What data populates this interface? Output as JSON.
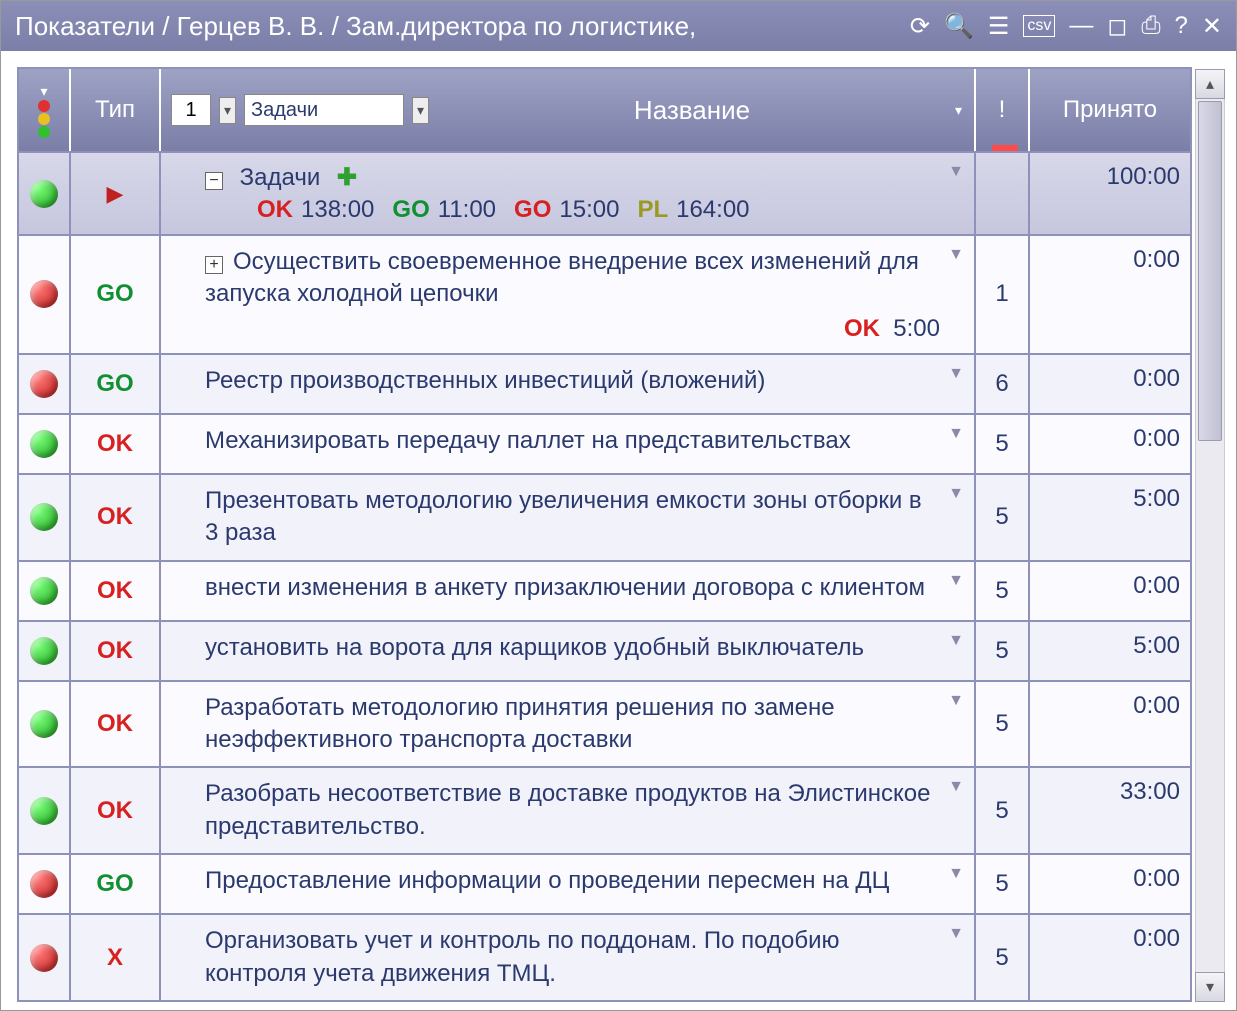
{
  "window": {
    "title": "Показатели / Герцев В. В. / Зам.директора по логистике,"
  },
  "header": {
    "type_label": "Тип",
    "title_label": "Название",
    "bang_label": "!",
    "accepted_label": "Принято",
    "level_value": "1",
    "combo_value": "Задачи"
  },
  "summary": {
    "tree_label": "Задачи",
    "accepted": "100:00",
    "chips": [
      {
        "lbl": "OK",
        "cls": "type-OK",
        "val": "138:00"
      },
      {
        "lbl": "GO",
        "cls": "type-GO",
        "val": "11:00"
      },
      {
        "lbl": "GO",
        "cls": "type-OK",
        "val": "15:00"
      },
      {
        "lbl": "PL",
        "cls": "type-PL",
        "val": "164:00"
      }
    ]
  },
  "rows": [
    {
      "status": "red",
      "type": "GO",
      "type_cls": "type-GO",
      "title": "Осуществить своевременное внедрение всех изменений для запуска холодной цепочки",
      "bang": "1",
      "accepted": "0:00",
      "expand": true,
      "sub_lbl": "OK",
      "sub_cls": "type-OK",
      "sub_val": "5:00"
    },
    {
      "status": "red",
      "type": "GO",
      "type_cls": "type-GO",
      "title": "Реестр производственных инвестиций (вложений)",
      "bang": "6",
      "accepted": "0:00"
    },
    {
      "status": "green",
      "type": "OK",
      "type_cls": "type-OK",
      "title": "Механизировать передачу паллет на представительствах",
      "bang": "5",
      "accepted": "0:00"
    },
    {
      "status": "green",
      "type": "OK",
      "type_cls": "type-OK",
      "title": "Презентовать методологию увеличения емкости зоны отборки в 3 раза",
      "bang": "5",
      "accepted": "5:00"
    },
    {
      "status": "green",
      "type": "OK",
      "type_cls": "type-OK",
      "title": "внести изменения в анкету призаключении договора с клиентом",
      "bang": "5",
      "accepted": "0:00"
    },
    {
      "status": "green",
      "type": "OK",
      "type_cls": "type-OK",
      "title": "установить на ворота для карщиков удобный выключатель",
      "bang": "5",
      "accepted": "5:00"
    },
    {
      "status": "green",
      "type": "OK",
      "type_cls": "type-OK",
      "title": "Разработать методологию принятия решения по замене неэффективного транспорта доставки",
      "bang": "5",
      "accepted": "0:00"
    },
    {
      "status": "green",
      "type": "OK",
      "type_cls": "type-OK",
      "title": "Разобрать несоответствие в доставке продуктов на Элистинское представительство.",
      "bang": "5",
      "accepted": "33:00"
    },
    {
      "status": "red",
      "type": "GO",
      "type_cls": "type-GO",
      "title": "Предоставление информации о проведении пересмен на ДЦ",
      "bang": "5",
      "accepted": "0:00"
    },
    {
      "status": "red",
      "type": "X",
      "type_cls": "type-X",
      "title": "Организовать учет и контроль по поддонам. По подобию контроля учета движения ТМЦ.",
      "bang": "5",
      "accepted": "0:00"
    }
  ]
}
